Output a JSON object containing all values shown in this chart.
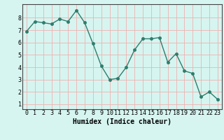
{
  "x": [
    0,
    1,
    2,
    3,
    4,
    5,
    6,
    7,
    8,
    9,
    10,
    11,
    12,
    13,
    14,
    15,
    16,
    17,
    18,
    19,
    20,
    21,
    22,
    23
  ],
  "y": [
    6.9,
    7.7,
    7.6,
    7.5,
    7.9,
    7.7,
    8.6,
    7.6,
    5.9,
    4.1,
    3.0,
    3.1,
    4.0,
    5.4,
    6.3,
    6.3,
    6.4,
    4.4,
    5.1,
    3.7,
    3.5,
    1.6,
    2.0,
    1.4
  ],
  "line_color": "#2e7d6e",
  "marker": "o",
  "markersize": 2.5,
  "linewidth": 1.0,
  "xlabel": "Humidex (Indice chaleur)",
  "xlim": [
    -0.5,
    23.5
  ],
  "ylim": [
    0.6,
    9.1
  ],
  "yticks": [
    1,
    2,
    3,
    4,
    5,
    6,
    7,
    8
  ],
  "xticks": [
    0,
    1,
    2,
    3,
    4,
    5,
    6,
    7,
    8,
    9,
    10,
    11,
    12,
    13,
    14,
    15,
    16,
    17,
    18,
    19,
    20,
    21,
    22,
    23
  ],
  "background_color": "#d6f5f0",
  "grid_color": "#f0b0b0",
  "label_fontsize": 7,
  "tick_fontsize": 6
}
